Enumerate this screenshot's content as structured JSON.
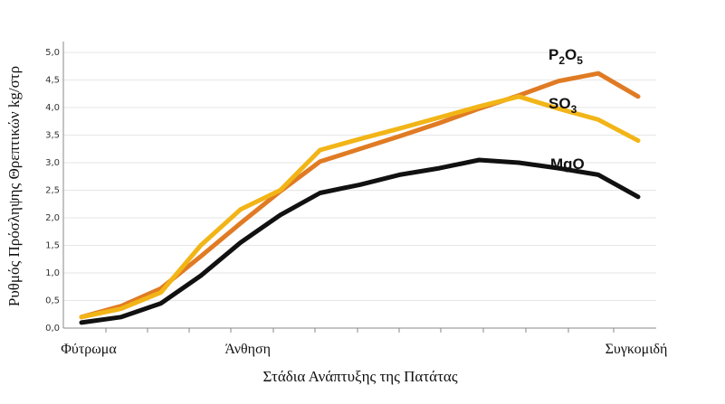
{
  "chart_data": {
    "type": "line",
    "xlabel": "Στάδια Ανάπτυξης της Πατάτας",
    "ylabel": "Ρυθμός Πρόσληψης Θρεπτικών kg/στρ",
    "ylim": [
      0,
      5
    ],
    "yticks": [
      "0,0",
      "0,5",
      "1,0",
      "1,5",
      "2,0",
      "2,5",
      "3,0",
      "3,5",
      "4,0",
      "4,5",
      "5,0"
    ],
    "xlim": [
      0,
      14
    ],
    "category_labels": [
      {
        "x": 0,
        "label": "Φύτρωμα"
      },
      {
        "x": 4,
        "label": "Άνθηση"
      },
      {
        "x": 14,
        "label": "Συγκομιδή"
      }
    ],
    "grid": true,
    "series": [
      {
        "name": "P2O5",
        "label_main": "P",
        "label_sub1": "2",
        "label_mid": "O",
        "label_sub2": "5",
        "color": "#E07B24",
        "points": [
          [
            0,
            0.2
          ],
          [
            1,
            0.4
          ],
          [
            2,
            0.72
          ],
          [
            3,
            1.3
          ],
          [
            4,
            1.9
          ],
          [
            5,
            2.48
          ],
          [
            6,
            3.02
          ],
          [
            7,
            3.25
          ],
          [
            8,
            3.48
          ],
          [
            9,
            3.72
          ],
          [
            10,
            3.98
          ],
          [
            11,
            4.22
          ],
          [
            12,
            4.48
          ],
          [
            13,
            4.62
          ],
          [
            14,
            4.2
          ]
        ]
      },
      {
        "name": "SO3",
        "label_main": "SO",
        "label_sub1": "3",
        "color": "#F2B517",
        "points": [
          [
            0,
            0.2
          ],
          [
            1,
            0.35
          ],
          [
            2,
            0.65
          ],
          [
            3,
            1.5
          ],
          [
            4,
            2.15
          ],
          [
            5,
            2.5
          ],
          [
            6,
            3.23
          ],
          [
            7,
            3.43
          ],
          [
            8,
            3.62
          ],
          [
            9,
            3.82
          ],
          [
            10,
            4.02
          ],
          [
            11,
            4.2
          ],
          [
            12,
            3.98
          ],
          [
            13,
            3.78
          ],
          [
            14,
            3.4
          ]
        ]
      },
      {
        "name": "MgO",
        "label_main": "MgO",
        "color": "#111111",
        "points": [
          [
            0,
            0.1
          ],
          [
            1,
            0.2
          ],
          [
            2,
            0.45
          ],
          [
            3,
            0.95
          ],
          [
            4,
            1.55
          ],
          [
            5,
            2.05
          ],
          [
            6,
            2.45
          ],
          [
            7,
            2.6
          ],
          [
            8,
            2.78
          ],
          [
            9,
            2.9
          ],
          [
            10,
            3.05
          ],
          [
            11,
            3.0
          ],
          [
            12,
            2.9
          ],
          [
            13,
            2.78
          ],
          [
            14,
            2.38
          ]
        ]
      }
    ]
  }
}
